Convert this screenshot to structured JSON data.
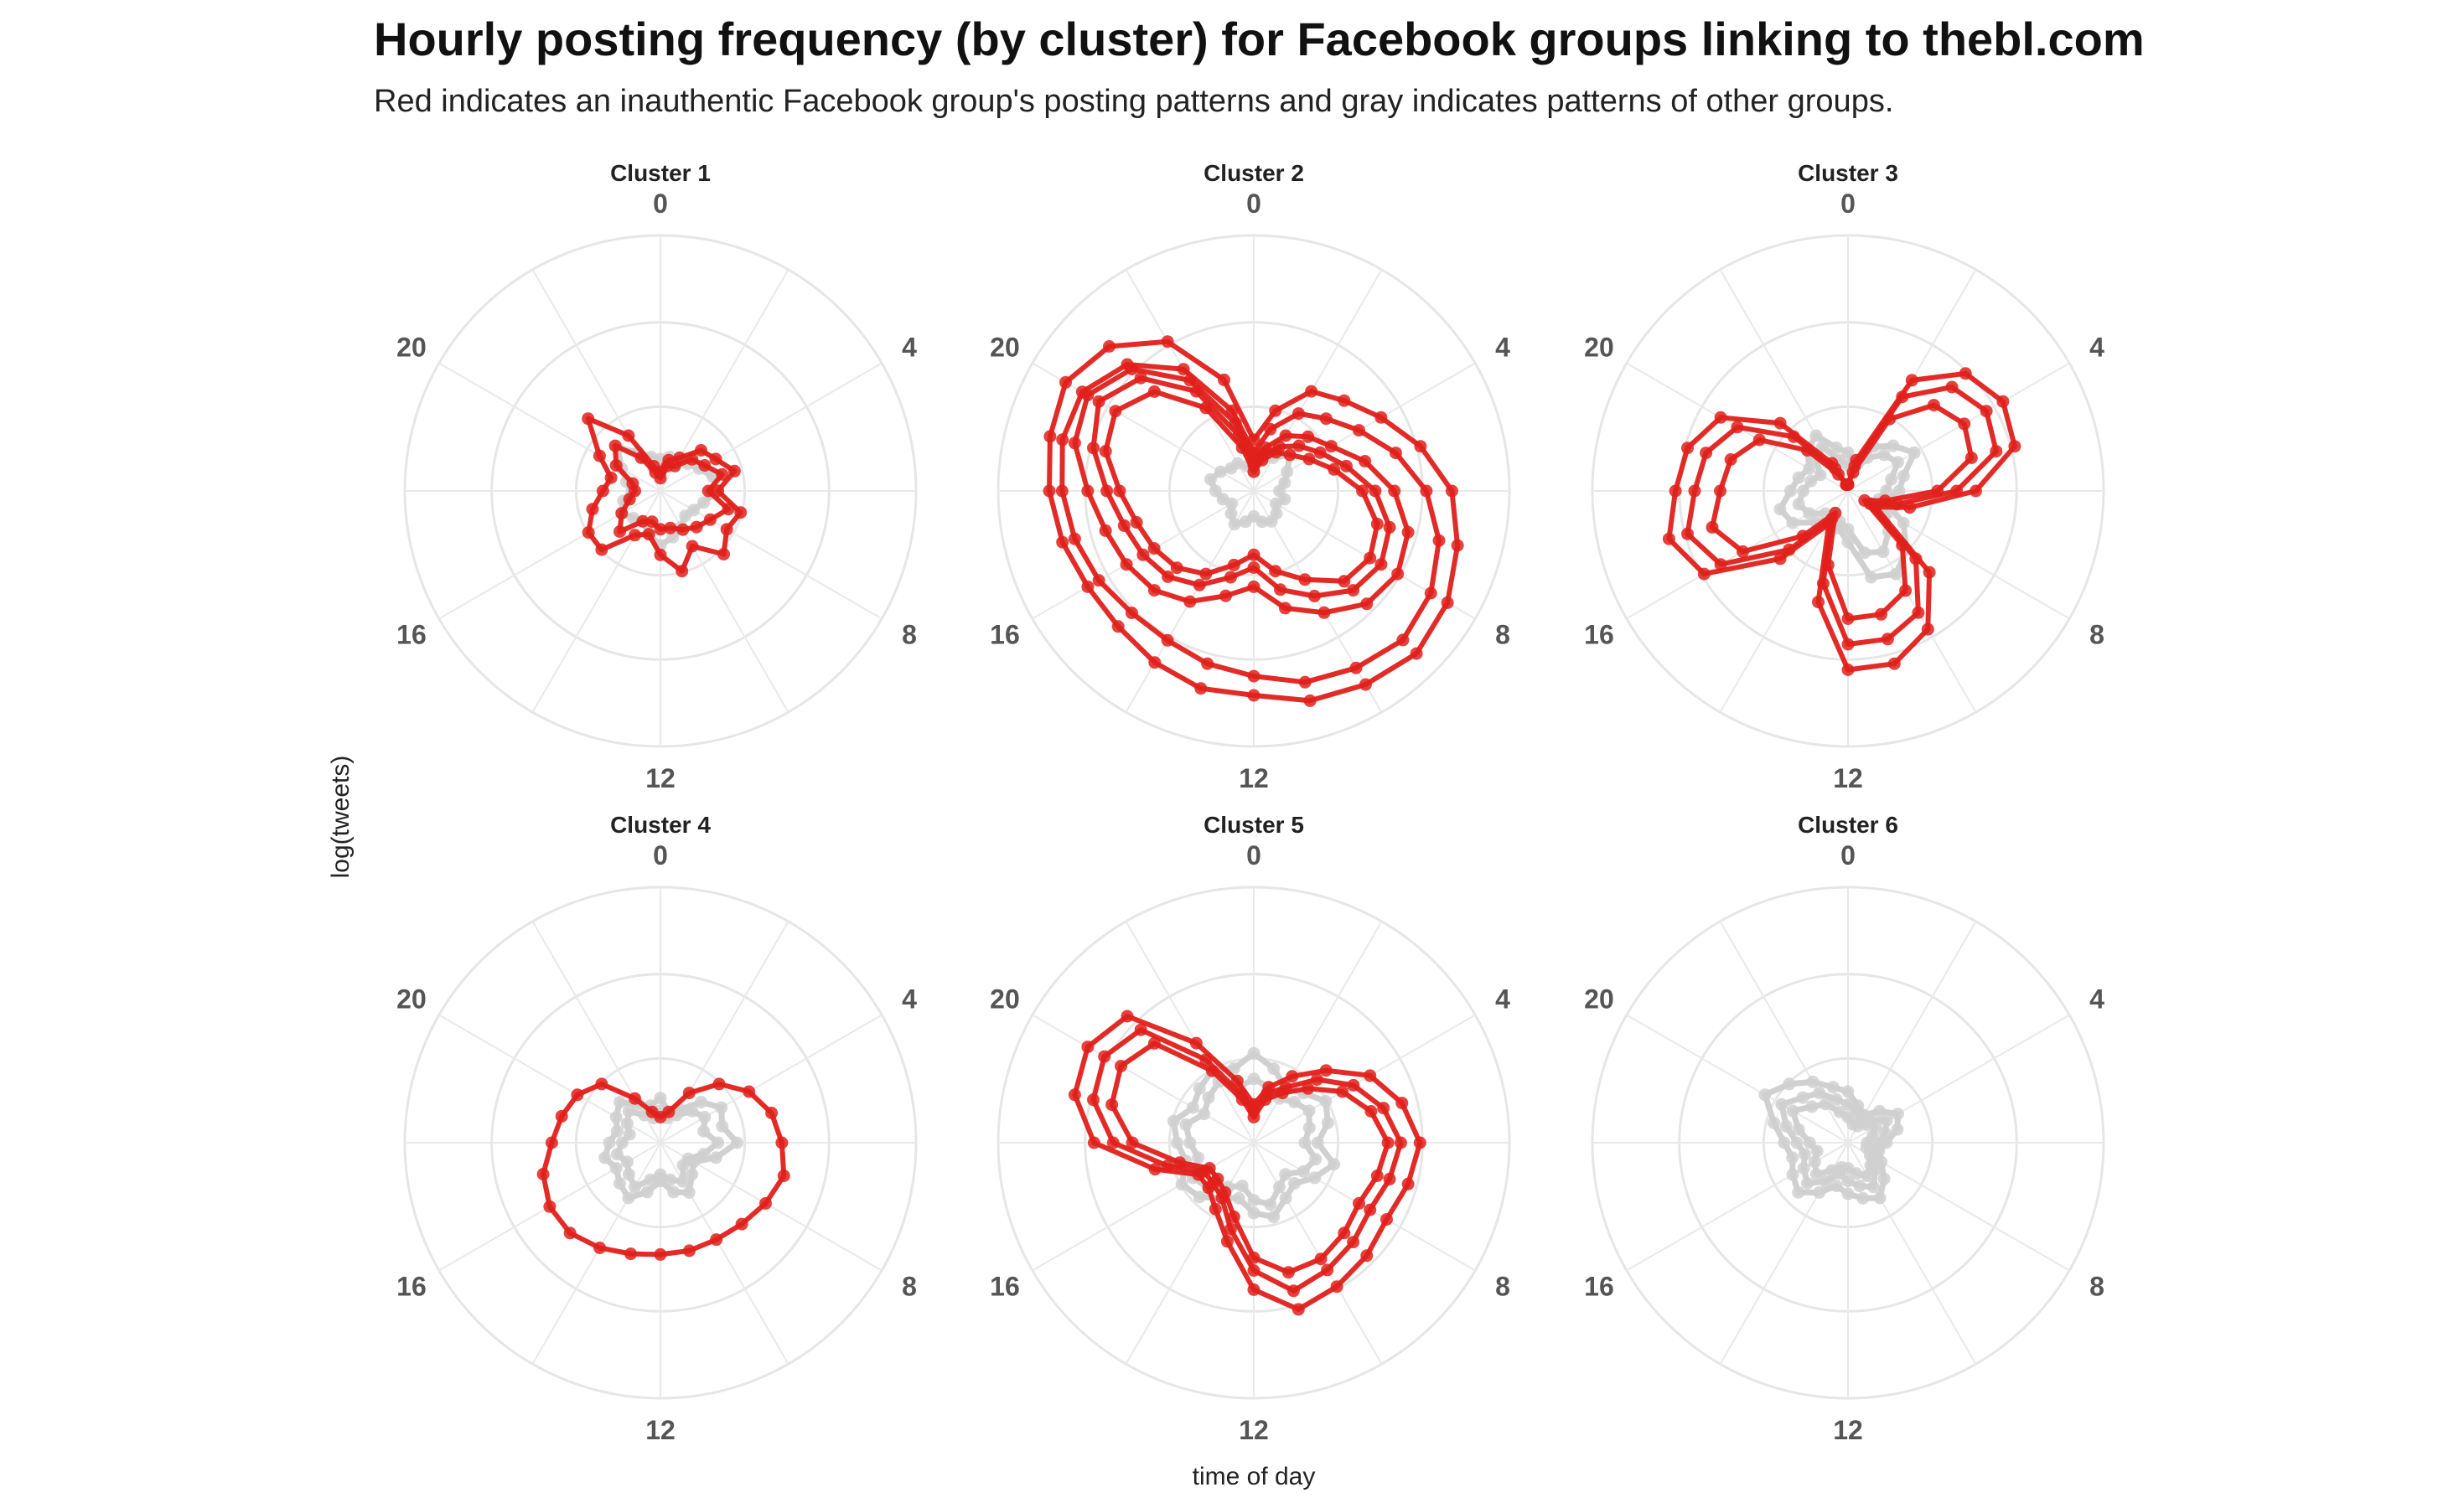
{
  "title": "Hourly posting frequency (by cluster) for Facebook groups linking to thebl.com",
  "subtitle": "Red indicates an inauthentic Facebook group's posting patterns and gray indicates patterns of other groups.",
  "chart_data": {
    "type": "radar",
    "xlabel": "time of day",
    "ylabel": "log(tweets)",
    "hour_tick_labels": [
      "0",
      "4",
      "8",
      "12",
      "16",
      "20"
    ],
    "rlim": [
      0,
      4
    ],
    "grid": true,
    "colors": {
      "inauthentic": "#e0201b",
      "other": "#d0d0d0"
    },
    "panels": [
      {
        "title": "Cluster 1",
        "series": [
          {
            "group": "other",
            "values": [
              0.5,
              0.55,
              0.5,
              0.6,
              0.7,
              0.85,
              0.9,
              0.7,
              0.6,
              0.55,
              0.65,
              0.75,
              0.85,
              0.7,
              0.55,
              0.6,
              0.7,
              0.6,
              0.45,
              0.55,
              0.7,
              0.95,
              0.7,
              0.55
            ]
          },
          {
            "group": "inauthentic",
            "values": [
              0.3,
              0.5,
              0.6,
              0.9,
              1.0,
              1.2,
              0.9,
              1.3,
              1.2,
              1.4,
              1.0,
              1.3,
              1.0,
              0.7,
              0.8,
              1.3,
              1.3,
              1.1,
              0.9,
              0.8,
              1.1,
              1.6,
              1.0,
              0.4
            ]
          },
          {
            "group": "inauthentic",
            "values": [
              0.2,
              0.4,
              0.45,
              0.7,
              0.8,
              1.0,
              0.75,
              1.1,
              0.9,
              0.8,
              0.7,
              0.6,
              0.6,
              0.5,
              0.55,
              0.9,
              0.7,
              0.5,
              0.4,
              0.45,
              0.8,
              1.0,
              0.6,
              0.3
            ]
          }
        ]
      },
      {
        "title": "Cluster 2",
        "series": [
          {
            "group": "other",
            "values": [
              0.3,
              0.5,
              0.6,
              0.8,
              0.6,
              0.5,
              0.4,
              0.5,
              0.4,
              0.5,
              0.55,
              0.5,
              0.4,
              0.5,
              0.6,
              0.5,
              0.4,
              0.5,
              0.6,
              0.7,
              0.6,
              0.5,
              0.5,
              0.4
            ]
          },
          {
            "group": "inauthentic",
            "values": [
              0.8,
              1.3,
              1.8,
              2.0,
              2.3,
              2.7,
              3.1,
              3.3,
              3.5,
              3.6,
              3.5,
              3.4,
              3.2,
              3.2,
              3.1,
              3.0,
              3.0,
              3.1,
              3.2,
              3.3,
              3.4,
              3.2,
              2.7,
              1.8
            ]
          },
          {
            "group": "inauthentic",
            "values": [
              0.6,
              1.0,
              1.4,
              1.6,
              1.9,
              2.3,
              2.7,
              3.0,
              3.2,
              3.3,
              3.2,
              3.1,
              2.9,
              2.8,
              2.7,
              2.7,
              2.8,
              2.9,
              3.0,
              3.1,
              3.1,
              2.8,
              2.2,
              1.3
            ]
          },
          {
            "group": "inauthentic",
            "values": [
              0.5,
              0.7,
              1.0,
              1.2,
              1.4,
              1.8,
              2.2,
              2.5,
              2.6,
              2.5,
              2.2,
              1.9,
              1.5,
              1.7,
              2.0,
              2.2,
              2.3,
              2.4,
              2.6,
              2.9,
              3.0,
              2.7,
              2.0,
              1.1
            ]
          },
          {
            "group": "inauthentic",
            "values": [
              0.4,
              0.6,
              0.8,
              1.0,
              1.2,
              1.5,
              1.9,
              2.2,
              2.3,
              2.2,
              1.9,
              1.6,
              1.2,
              1.4,
              1.7,
              1.9,
              2.0,
              2.1,
              2.3,
              2.6,
              2.8,
              2.5,
              1.8,
              0.9
            ]
          },
          {
            "group": "inauthentic",
            "values": [
              0.3,
              0.5,
              0.7,
              0.8,
              1.0,
              1.3,
              1.7,
              2.0,
              2.1,
              2.0,
              1.6,
              1.3,
              1.0,
              1.2,
              1.5,
              1.7,
              1.8,
              1.9,
              2.1,
              2.4,
              2.5,
              2.2,
              1.5,
              0.7
            ]
          }
        ]
      },
      {
        "title": "Cluster 3",
        "series": [
          {
            "group": "other",
            "values": [
              0.6,
              0.4,
              0.8,
              1.0,
              1.2,
              0.9,
              0.8,
              0.6,
              1.0,
              1.3,
              1.5,
              1.4,
              0.8,
              0.6,
              0.5,
              0.7,
              1.0,
              1.1,
              0.9,
              0.8,
              0.7,
              0.9,
              1.0,
              0.7
            ]
          },
          {
            "group": "other",
            "values": [
              0.4,
              0.3,
              0.6,
              0.8,
              0.9,
              0.7,
              0.6,
              0.5,
              0.7,
              0.9,
              1.1,
              1.0,
              0.6,
              0.5,
              0.4,
              0.5,
              0.7,
              0.8,
              0.7,
              0.6,
              0.5,
              0.7,
              0.8,
              0.5
            ]
          },
          {
            "group": "inauthentic",
            "values": [
              0.1,
              0.5,
              2.0,
              2.6,
              2.8,
              2.7,
              2.0,
              1.0,
              0.5,
              1.8,
              2.5,
              2.8,
              2.8,
              1.8,
              0.6,
              1.5,
              2.6,
              2.9,
              2.7,
              2.6,
              2.3,
              1.5,
              0.5,
              0.1
            ]
          },
          {
            "group": "inauthentic",
            "values": [
              0.1,
              0.4,
              1.7,
              2.3,
              2.5,
              2.4,
              1.7,
              0.8,
              0.4,
              1.5,
              2.2,
              2.4,
              2.4,
              1.5,
              0.5,
              1.3,
              2.3,
              2.6,
              2.4,
              2.3,
              2.0,
              1.2,
              0.4,
              0.1
            ]
          },
          {
            "group": "inauthentic",
            "values": [
              0.1,
              0.3,
              1.3,
              1.9,
              2.1,
              2.0,
              1.4,
              0.6,
              0.3,
              1.2,
              1.8,
              2.0,
              2.0,
              1.2,
              0.4,
              1.0,
              1.9,
              2.2,
              2.0,
              1.9,
              1.6,
              0.9,
              0.3,
              0.1
            ]
          }
        ]
      },
      {
        "title": "Cluster 4",
        "series": [
          {
            "group": "other",
            "values": [
              0.7,
              0.5,
              0.6,
              0.9,
              1.1,
              1.0,
              1.2,
              0.9,
              0.6,
              0.7,
              0.9,
              0.8,
              0.6,
              0.8,
              1.0,
              0.9,
              0.8,
              0.9,
              0.8,
              0.7,
              0.8,
              0.9,
              0.7,
              0.6
            ]
          },
          {
            "group": "other",
            "values": [
              0.5,
              0.4,
              0.5,
              0.7,
              0.8,
              0.7,
              0.9,
              0.7,
              0.5,
              0.5,
              0.7,
              0.6,
              0.5,
              0.6,
              0.8,
              0.7,
              0.6,
              0.7,
              0.6,
              0.5,
              0.6,
              0.7,
              0.5,
              0.4
            ]
          },
          {
            "group": "inauthentic",
            "values": [
              0.4,
              0.5,
              0.9,
              1.3,
              1.6,
              1.8,
              1.9,
              2.0,
              1.9,
              1.8,
              1.75,
              1.75,
              1.75,
              1.8,
              1.9,
              2.0,
              2.0,
              1.9,
              1.7,
              1.6,
              1.5,
              1.3,
              0.8,
              0.5
            ]
          }
        ]
      },
      {
        "title": "Cluster 5",
        "series": [
          {
            "group": "other",
            "values": [
              1.4,
              1.2,
              1.0,
              1.1,
              1.3,
              1.2,
              1.0,
              1.3,
              1.1,
              0.9,
              1.0,
              1.2,
              1.1,
              0.9,
              1.0,
              1.2,
              1.3,
              1.1,
              1.2,
              1.3,
              1.1,
              1.2,
              1.3,
              1.2
            ]
          },
          {
            "group": "other",
            "values": [
              1.0,
              0.9,
              0.8,
              0.9,
              1.0,
              0.9,
              0.8,
              1.0,
              0.9,
              0.7,
              0.8,
              1.0,
              0.9,
              0.7,
              0.8,
              1.0,
              1.1,
              0.9,
              1.0,
              1.1,
              0.9,
              1.0,
              1.1,
              0.9
            ]
          },
          {
            "group": "inauthentic",
            "values": [
              0.6,
              0.9,
              1.2,
              1.6,
              2.1,
              2.4,
              2.6,
              2.5,
              2.4,
              2.5,
              2.6,
              2.7,
              2.3,
              1.6,
              1.2,
              1.0,
              1.0,
              1.6,
              2.5,
              2.9,
              3.0,
              2.8,
              1.8,
              1.0
            ]
          },
          {
            "group": "inauthentic",
            "values": [
              0.5,
              0.8,
              1.0,
              1.4,
              1.8,
              2.1,
              2.3,
              2.2,
              2.1,
              2.2,
              2.3,
              2.4,
              2.0,
              1.4,
              1.0,
              0.9,
              0.9,
              1.4,
              2.2,
              2.6,
              2.7,
              2.5,
              1.5,
              0.8
            ]
          },
          {
            "group": "inauthentic",
            "values": [
              0.4,
              0.7,
              0.9,
              1.2,
              1.6,
              1.9,
              2.1,
              2.0,
              1.9,
              2.0,
              2.1,
              2.1,
              1.8,
              1.2,
              0.9,
              0.8,
              0.8,
              1.2,
              1.9,
              2.3,
              2.4,
              2.2,
              1.3,
              0.7
            ]
          }
        ]
      },
      {
        "title": "Cluster 6",
        "series": [
          {
            "group": "other",
            "values": [
              0.8,
              0.6,
              0.5,
              0.7,
              0.9,
              0.8,
              0.6,
              0.5,
              0.6,
              0.8,
              1.0,
              0.9,
              0.8,
              0.7,
              0.9,
              1.1,
              1.0,
              0.9,
              1.0,
              1.2,
              1.5,
              1.3,
              1.1,
              0.9
            ]
          },
          {
            "group": "other",
            "values": [
              0.6,
              0.5,
              0.4,
              0.5,
              0.7,
              0.6,
              0.5,
              0.4,
              0.5,
              0.6,
              0.8,
              0.7,
              0.6,
              0.5,
              0.7,
              0.9,
              0.8,
              0.7,
              0.8,
              1.0,
              1.2,
              1.0,
              0.9,
              0.7
            ]
          },
          {
            "group": "other",
            "values": [
              0.4,
              0.3,
              0.3,
              0.4,
              0.5,
              0.4,
              0.3,
              0.3,
              0.4,
              0.5,
              0.6,
              0.5,
              0.4,
              0.4,
              0.5,
              0.7,
              0.6,
              0.5,
              0.6,
              0.8,
              1.0,
              0.8,
              0.7,
              0.5
            ]
          }
        ]
      }
    ]
  }
}
